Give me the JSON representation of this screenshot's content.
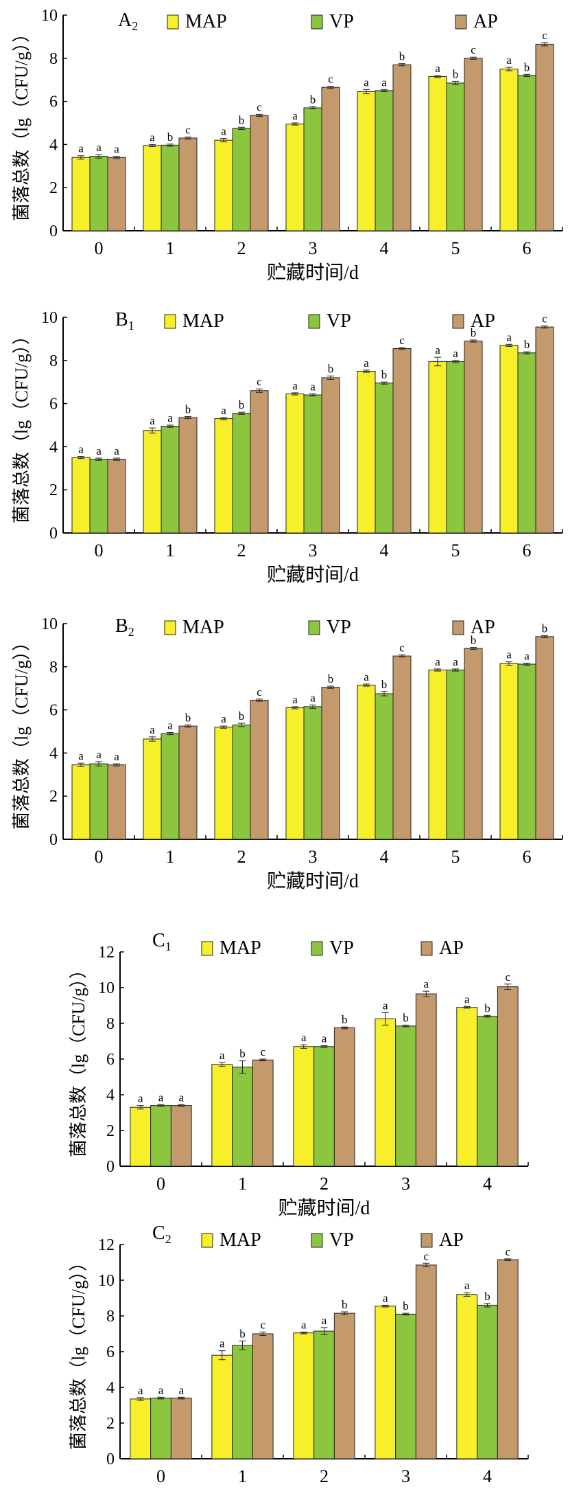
{
  "colors": {
    "MAP": "#f7ef2a",
    "VP": "#8cc63f",
    "AP": "#c49a6c",
    "axis": "#000000"
  },
  "chart_data": [
    {
      "type": "bar",
      "panel_label": "A",
      "panel_sub": "2",
      "xlabel": "贮藏时间/d",
      "ylabel": "菌落总数（lg（CFU/g））",
      "categories": [
        "0",
        "1",
        "2",
        "3",
        "4",
        "5",
        "6"
      ],
      "ylim": [
        0,
        10
      ],
      "yticks": [
        0,
        2,
        4,
        6,
        8,
        10
      ],
      "legend": [
        "MAP",
        "VP",
        "AP"
      ],
      "series": [
        {
          "name": "MAP",
          "values": [
            3.4,
            3.95,
            4.2,
            4.95,
            6.45,
            7.15,
            7.5
          ],
          "errors": [
            0.08,
            0.05,
            0.08,
            0.05,
            0.1,
            0.05,
            0.08
          ],
          "letters": [
            "a",
            "a",
            "a",
            "a",
            "a",
            "a",
            "a"
          ]
        },
        {
          "name": "VP",
          "values": [
            3.45,
            3.97,
            4.75,
            5.7,
            6.5,
            6.85,
            7.2
          ],
          "errors": [
            0.08,
            0.05,
            0.05,
            0.05,
            0.05,
            0.08,
            0.05
          ],
          "letters": [
            "a",
            "b",
            "b",
            "b",
            "a",
            "b",
            "b"
          ]
        },
        {
          "name": "AP",
          "values": [
            3.4,
            4.3,
            5.35,
            6.65,
            7.7,
            8.0,
            8.65
          ],
          "errors": [
            0.05,
            0.05,
            0.05,
            0.05,
            0.05,
            0.05,
            0.08
          ],
          "letters": [
            "a",
            "c",
            "c",
            "c",
            "b",
            "c",
            "c"
          ]
        }
      ]
    },
    {
      "type": "bar",
      "panel_label": "B",
      "panel_sub": "1",
      "xlabel": "贮藏时间/d",
      "ylabel": "菌落总数（lg（CFU/g））",
      "categories": [
        "0",
        "1",
        "2",
        "3",
        "4",
        "5",
        "6"
      ],
      "ylim": [
        0,
        10
      ],
      "yticks": [
        0,
        2,
        4,
        6,
        8,
        10
      ],
      "legend": [
        "MAP",
        "VP",
        "AP"
      ],
      "series": [
        {
          "name": "MAP",
          "values": [
            3.5,
            4.75,
            5.3,
            6.45,
            7.5,
            7.95,
            8.7
          ],
          "errors": [
            0.05,
            0.12,
            0.05,
            0.05,
            0.05,
            0.2,
            0.05
          ],
          "letters": [
            "a",
            "a",
            "a",
            "a",
            "a",
            "a",
            "a"
          ]
        },
        {
          "name": "VP",
          "values": [
            3.42,
            4.95,
            5.55,
            6.4,
            6.95,
            7.95,
            8.35
          ],
          "errors": [
            0.05,
            0.05,
            0.05,
            0.05,
            0.05,
            0.05,
            0.05
          ],
          "letters": [
            "a",
            "a",
            "b",
            "a",
            "b",
            "a",
            "b"
          ]
        },
        {
          "name": "AP",
          "values": [
            3.42,
            5.35,
            6.6,
            7.2,
            8.55,
            8.9,
            9.55
          ],
          "errors": [
            0.05,
            0.05,
            0.08,
            0.08,
            0.05,
            0.05,
            0.05
          ],
          "letters": [
            "a",
            "b",
            "c",
            "b",
            "c",
            "b",
            "c"
          ]
        }
      ]
    },
    {
      "type": "bar",
      "panel_label": "B",
      "panel_sub": "2",
      "xlabel": "贮藏时间/d",
      "ylabel": "菌落总数（lg（CFU/g））",
      "categories": [
        "0",
        "1",
        "2",
        "3",
        "4",
        "5",
        "6"
      ],
      "ylim": [
        0,
        10
      ],
      "yticks": [
        0,
        2,
        4,
        6,
        8,
        10
      ],
      "legend": [
        "MAP",
        "VP",
        "AP"
      ],
      "series": [
        {
          "name": "MAP",
          "values": [
            3.45,
            4.65,
            5.2,
            6.1,
            7.15,
            7.85,
            8.15
          ],
          "errors": [
            0.08,
            0.1,
            0.05,
            0.05,
            0.05,
            0.05,
            0.08
          ],
          "letters": [
            "a",
            "a",
            "a",
            "a",
            "a",
            "a",
            "a"
          ]
        },
        {
          "name": "VP",
          "values": [
            3.5,
            4.9,
            5.3,
            6.15,
            6.75,
            7.85,
            8.12
          ],
          "errors": [
            0.1,
            0.05,
            0.08,
            0.08,
            0.1,
            0.05,
            0.05
          ],
          "letters": [
            "a",
            "a",
            "b",
            "a",
            "b",
            "a",
            "a"
          ]
        },
        {
          "name": "AP",
          "values": [
            3.45,
            5.25,
            6.45,
            7.05,
            8.5,
            8.85,
            9.4
          ],
          "errors": [
            0.05,
            0.05,
            0.05,
            0.05,
            0.05,
            0.05,
            0.05
          ],
          "letters": [
            "a",
            "b",
            "c",
            "b",
            "c",
            "b",
            "b"
          ]
        }
      ]
    },
    {
      "type": "bar",
      "panel_label": "C",
      "panel_sub": "1",
      "xlabel": "贮藏时间/d",
      "ylabel": "菌落总数（lg（CFU/g））",
      "categories": [
        "0",
        "1",
        "2",
        "3",
        "4"
      ],
      "ylim": [
        0,
        12
      ],
      "yticks": [
        0,
        2,
        4,
        6,
        8,
        10,
        12
      ],
      "legend": [
        "MAP",
        "VP",
        "AP"
      ],
      "series": [
        {
          "name": "MAP",
          "values": [
            3.3,
            5.7,
            6.7,
            8.25,
            8.9
          ],
          "errors": [
            0.1,
            0.1,
            0.1,
            0.35,
            0.05
          ],
          "letters": [
            "a",
            "a",
            "a",
            "a",
            "a"
          ]
        },
        {
          "name": "VP",
          "values": [
            3.4,
            5.55,
            6.7,
            7.85,
            8.4
          ],
          "errors": [
            0.05,
            0.35,
            0.05,
            0.05,
            0.05
          ],
          "letters": [
            "a",
            "b",
            "a",
            "b",
            "b"
          ]
        },
        {
          "name": "AP",
          "values": [
            3.4,
            5.95,
            7.75,
            9.65,
            10.05
          ],
          "errors": [
            0.05,
            0.05,
            0.05,
            0.15,
            0.15
          ],
          "letters": [
            "a",
            "c",
            "b",
            "a",
            "c"
          ]
        }
      ]
    },
    {
      "type": "bar",
      "panel_label": "C",
      "panel_sub": "2",
      "xlabel": "贮藏时间/d",
      "ylabel": "菌落总数（lg（CFU/g））",
      "categories": [
        "0",
        "1",
        "2",
        "3",
        "4"
      ],
      "ylim": [
        0,
        12
      ],
      "yticks": [
        0,
        2,
        4,
        6,
        8,
        10,
        12
      ],
      "legend": [
        "MAP",
        "VP",
        "AP"
      ],
      "series": [
        {
          "name": "MAP",
          "values": [
            3.35,
            5.8,
            7.05,
            8.55,
            9.2
          ],
          "errors": [
            0.08,
            0.25,
            0.05,
            0.05,
            0.1
          ],
          "letters": [
            "a",
            "a",
            "a",
            "a",
            "a"
          ]
        },
        {
          "name": "VP",
          "values": [
            3.4,
            6.35,
            7.15,
            8.1,
            8.6
          ],
          "errors": [
            0.05,
            0.25,
            0.2,
            0.05,
            0.1
          ],
          "letters": [
            "a",
            "b",
            "a",
            "b",
            "b"
          ]
        },
        {
          "name": "AP",
          "values": [
            3.4,
            7.0,
            8.15,
            10.85,
            11.15
          ],
          "errors": [
            0.05,
            0.1,
            0.08,
            0.1,
            0.05
          ],
          "letters": [
            "a",
            "c",
            "b",
            "c",
            "c"
          ]
        }
      ]
    }
  ]
}
